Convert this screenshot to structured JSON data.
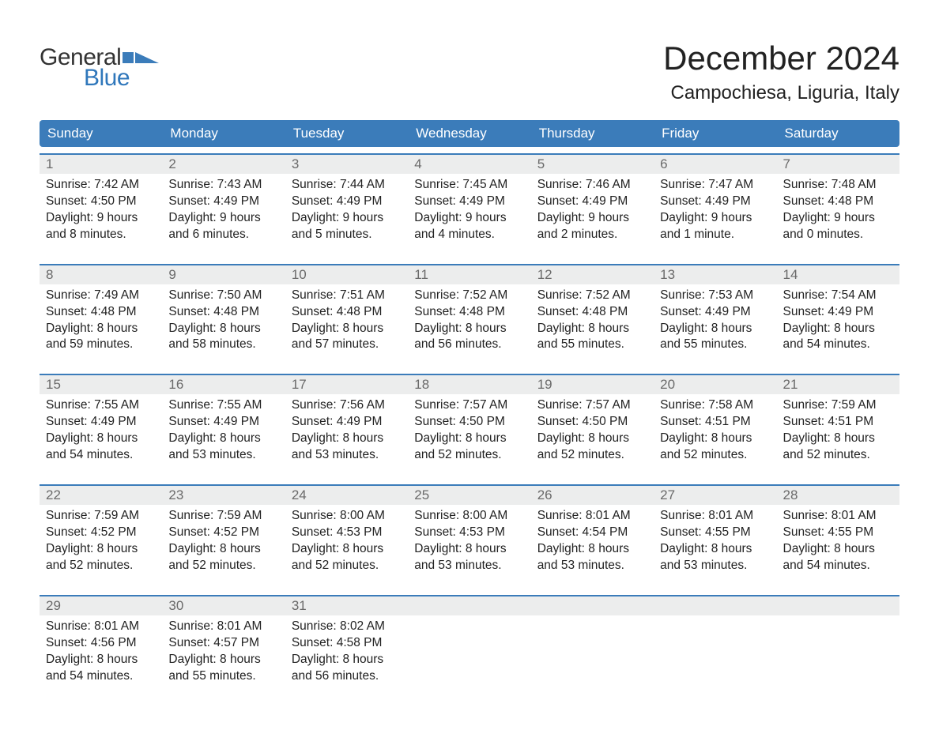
{
  "colors": {
    "brand_blue": "#3b7cba",
    "logo_gray": "#333333",
    "logo_blue": "#2f77bb",
    "daynum_bg": "#eceded",
    "daynum_text": "#6a6a6a",
    "text": "#222222",
    "white": "#ffffff"
  },
  "logo": {
    "word1": "General",
    "word2": "Blue"
  },
  "header": {
    "title": "December 2024",
    "location": "Campochiesa, Liguria, Italy"
  },
  "typography": {
    "title_fontsize": 42,
    "location_fontsize": 24,
    "dow_fontsize": 17,
    "body_fontsize": 15.5
  },
  "days_of_week": [
    "Sunday",
    "Monday",
    "Tuesday",
    "Wednesday",
    "Thursday",
    "Friday",
    "Saturday"
  ],
  "weeks": [
    [
      {
        "n": "1",
        "sunrise": "Sunrise: 7:42 AM",
        "sunset": "Sunset: 4:50 PM",
        "day1": "Daylight: 9 hours",
        "day2": "and 8 minutes."
      },
      {
        "n": "2",
        "sunrise": "Sunrise: 7:43 AM",
        "sunset": "Sunset: 4:49 PM",
        "day1": "Daylight: 9 hours",
        "day2": "and 6 minutes."
      },
      {
        "n": "3",
        "sunrise": "Sunrise: 7:44 AM",
        "sunset": "Sunset: 4:49 PM",
        "day1": "Daylight: 9 hours",
        "day2": "and 5 minutes."
      },
      {
        "n": "4",
        "sunrise": "Sunrise: 7:45 AM",
        "sunset": "Sunset: 4:49 PM",
        "day1": "Daylight: 9 hours",
        "day2": "and 4 minutes."
      },
      {
        "n": "5",
        "sunrise": "Sunrise: 7:46 AM",
        "sunset": "Sunset: 4:49 PM",
        "day1": "Daylight: 9 hours",
        "day2": "and 2 minutes."
      },
      {
        "n": "6",
        "sunrise": "Sunrise: 7:47 AM",
        "sunset": "Sunset: 4:49 PM",
        "day1": "Daylight: 9 hours",
        "day2": "and 1 minute."
      },
      {
        "n": "7",
        "sunrise": "Sunrise: 7:48 AM",
        "sunset": "Sunset: 4:48 PM",
        "day1": "Daylight: 9 hours",
        "day2": "and 0 minutes."
      }
    ],
    [
      {
        "n": "8",
        "sunrise": "Sunrise: 7:49 AM",
        "sunset": "Sunset: 4:48 PM",
        "day1": "Daylight: 8 hours",
        "day2": "and 59 minutes."
      },
      {
        "n": "9",
        "sunrise": "Sunrise: 7:50 AM",
        "sunset": "Sunset: 4:48 PM",
        "day1": "Daylight: 8 hours",
        "day2": "and 58 minutes."
      },
      {
        "n": "10",
        "sunrise": "Sunrise: 7:51 AM",
        "sunset": "Sunset: 4:48 PM",
        "day1": "Daylight: 8 hours",
        "day2": "and 57 minutes."
      },
      {
        "n": "11",
        "sunrise": "Sunrise: 7:52 AM",
        "sunset": "Sunset: 4:48 PM",
        "day1": "Daylight: 8 hours",
        "day2": "and 56 minutes."
      },
      {
        "n": "12",
        "sunrise": "Sunrise: 7:52 AM",
        "sunset": "Sunset: 4:48 PM",
        "day1": "Daylight: 8 hours",
        "day2": "and 55 minutes."
      },
      {
        "n": "13",
        "sunrise": "Sunrise: 7:53 AM",
        "sunset": "Sunset: 4:49 PM",
        "day1": "Daylight: 8 hours",
        "day2": "and 55 minutes."
      },
      {
        "n": "14",
        "sunrise": "Sunrise: 7:54 AM",
        "sunset": "Sunset: 4:49 PM",
        "day1": "Daylight: 8 hours",
        "day2": "and 54 minutes."
      }
    ],
    [
      {
        "n": "15",
        "sunrise": "Sunrise: 7:55 AM",
        "sunset": "Sunset: 4:49 PM",
        "day1": "Daylight: 8 hours",
        "day2": "and 54 minutes."
      },
      {
        "n": "16",
        "sunrise": "Sunrise: 7:55 AM",
        "sunset": "Sunset: 4:49 PM",
        "day1": "Daylight: 8 hours",
        "day2": "and 53 minutes."
      },
      {
        "n": "17",
        "sunrise": "Sunrise: 7:56 AM",
        "sunset": "Sunset: 4:49 PM",
        "day1": "Daylight: 8 hours",
        "day2": "and 53 minutes."
      },
      {
        "n": "18",
        "sunrise": "Sunrise: 7:57 AM",
        "sunset": "Sunset: 4:50 PM",
        "day1": "Daylight: 8 hours",
        "day2": "and 52 minutes."
      },
      {
        "n": "19",
        "sunrise": "Sunrise: 7:57 AM",
        "sunset": "Sunset: 4:50 PM",
        "day1": "Daylight: 8 hours",
        "day2": "and 52 minutes."
      },
      {
        "n": "20",
        "sunrise": "Sunrise: 7:58 AM",
        "sunset": "Sunset: 4:51 PM",
        "day1": "Daylight: 8 hours",
        "day2": "and 52 minutes."
      },
      {
        "n": "21",
        "sunrise": "Sunrise: 7:59 AM",
        "sunset": "Sunset: 4:51 PM",
        "day1": "Daylight: 8 hours",
        "day2": "and 52 minutes."
      }
    ],
    [
      {
        "n": "22",
        "sunrise": "Sunrise: 7:59 AM",
        "sunset": "Sunset: 4:52 PM",
        "day1": "Daylight: 8 hours",
        "day2": "and 52 minutes."
      },
      {
        "n": "23",
        "sunrise": "Sunrise: 7:59 AM",
        "sunset": "Sunset: 4:52 PM",
        "day1": "Daylight: 8 hours",
        "day2": "and 52 minutes."
      },
      {
        "n": "24",
        "sunrise": "Sunrise: 8:00 AM",
        "sunset": "Sunset: 4:53 PM",
        "day1": "Daylight: 8 hours",
        "day2": "and 52 minutes."
      },
      {
        "n": "25",
        "sunrise": "Sunrise: 8:00 AM",
        "sunset": "Sunset: 4:53 PM",
        "day1": "Daylight: 8 hours",
        "day2": "and 53 minutes."
      },
      {
        "n": "26",
        "sunrise": "Sunrise: 8:01 AM",
        "sunset": "Sunset: 4:54 PM",
        "day1": "Daylight: 8 hours",
        "day2": "and 53 minutes."
      },
      {
        "n": "27",
        "sunrise": "Sunrise: 8:01 AM",
        "sunset": "Sunset: 4:55 PM",
        "day1": "Daylight: 8 hours",
        "day2": "and 53 minutes."
      },
      {
        "n": "28",
        "sunrise": "Sunrise: 8:01 AM",
        "sunset": "Sunset: 4:55 PM",
        "day1": "Daylight: 8 hours",
        "day2": "and 54 minutes."
      }
    ],
    [
      {
        "n": "29",
        "sunrise": "Sunrise: 8:01 AM",
        "sunset": "Sunset: 4:56 PM",
        "day1": "Daylight: 8 hours",
        "day2": "and 54 minutes."
      },
      {
        "n": "30",
        "sunrise": "Sunrise: 8:01 AM",
        "sunset": "Sunset: 4:57 PM",
        "day1": "Daylight: 8 hours",
        "day2": "and 55 minutes."
      },
      {
        "n": "31",
        "sunrise": "Sunrise: 8:02 AM",
        "sunset": "Sunset: 4:58 PM",
        "day1": "Daylight: 8 hours",
        "day2": "and 56 minutes."
      },
      null,
      null,
      null,
      null
    ]
  ]
}
